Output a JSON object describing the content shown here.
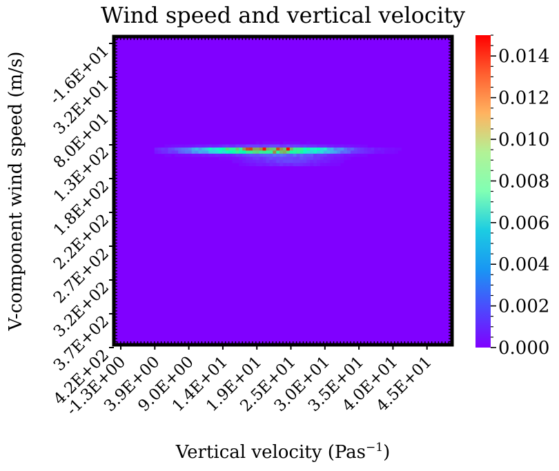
{
  "chart_data": {
    "type": "heatmap",
    "title": "Wind speed and vertical velocity",
    "xlabel": "Vertical velocity (Pas",
    "xlabel_sup": "−1",
    "xlabel_close": ")",
    "ylabel": "V-component wind speed (m/s)",
    "x_tick_labels": [
      "-1.3E+00",
      "3.9E+00",
      "9.0E+00",
      "1.4E+01",
      "1.9E+01",
      "2.5E+01",
      "3.0E+01",
      "3.5E+01",
      "4.0E+01",
      "4.5E+01"
    ],
    "y_tick_labels": [
      "-1.6E+01",
      "3.2E+01",
      "8.0E+01",
      "1.3E+02",
      "1.8E+02",
      "2.2E+02",
      "2.7E+02",
      "3.2E+02",
      "3.7E+02",
      "4.2E+02"
    ],
    "xlim": [
      -1.3,
      50.0
    ],
    "ylim": [
      -16,
      420
    ],
    "colorbar": {
      "colormap": "rainbow",
      "range": [
        0.0,
        0.015
      ],
      "tick_labels": [
        "0.000",
        "0.002",
        "0.004",
        "0.006",
        "0.008",
        "0.010",
        "0.012",
        "0.014"
      ],
      "tick_values": [
        0.0,
        0.002,
        0.004,
        0.006,
        0.008,
        0.01,
        0.012,
        0.014
      ]
    },
    "background_value": 0.0,
    "peak": {
      "x": 25.0,
      "y": 145,
      "value": 0.015
    },
    "band": {
      "center_y": 145,
      "y_half_width": 3.5,
      "x_extent": [
        5.0,
        48.0
      ],
      "x_core": [
        13.0,
        30.0
      ]
    },
    "colors": {
      "low": "#8000ff",
      "high": "#ff0000",
      "frame": "#000000"
    }
  }
}
